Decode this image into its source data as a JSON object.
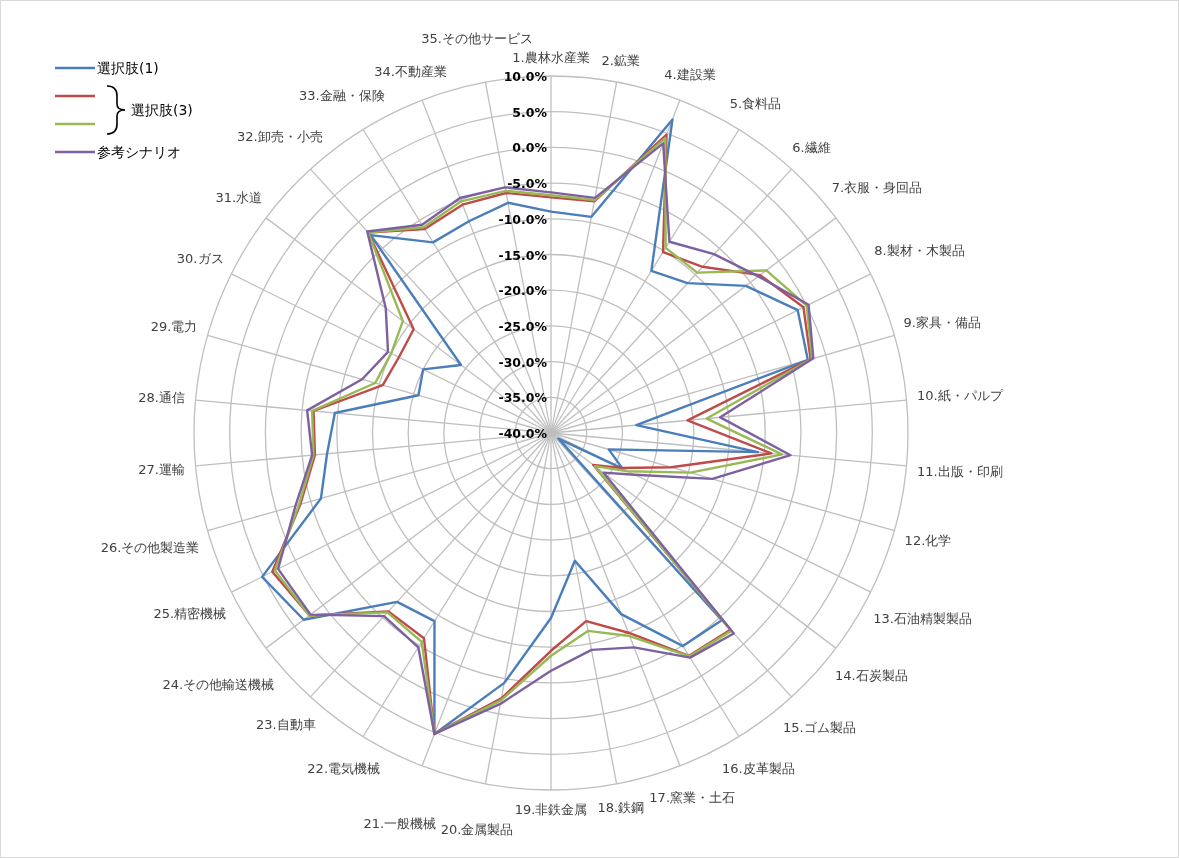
{
  "chart_data": {
    "type": "radar",
    "categories": [
      "1.農林水産業",
      "2.鉱業",
      "4.建設業",
      "5.食料品",
      "6.繊維",
      "7.衣服・身回品",
      "8.製材・木製品",
      "9.家具・備品",
      "10.紙・パルプ",
      "11.出版・印刷",
      "12.化学",
      "13.石油精製製品",
      "14.石炭製品",
      "15.ゴム製品",
      "16.皮革製品",
      "17.窯業・土石",
      "18.鉄鋼",
      "19.非鉄金属",
      "20.金属製品",
      "21.一般機械",
      "22.電気機械",
      "23.自動車",
      "24.その他輸送機械",
      "25.精密機械",
      "26.その他製造業",
      "27.運輸",
      "28.通信",
      "29.電力",
      "30.ガス",
      "31.水道",
      "32.卸売・小売",
      "33.金融・保険",
      "34.不動産業",
      "35.その他サービス"
    ],
    "series": [
      {
        "name": "選択肢(1)",
        "color": "#4a7ebb",
        "values": [
          -9.0,
          -9.2,
          7.1,
          -13.3,
          -11.6,
          -5.8,
          -1.4,
          -2.6,
          -28.0,
          -10.9,
          -31.6,
          -28.8,
          -38.7,
          -4.5,
          -4.9,
          -12.8,
          -21.8,
          -14.1,
          -4.4,
          5.2,
          -9.0,
          -8.0,
          3.4,
          5.2,
          -6.5,
          -8.5,
          -9.6,
          -20.7,
          -20.0,
          -24.2,
          -2.5,
          -8.6,
          -8.2,
          -7.2
        ]
      },
      {
        "color": "#be4b48",
        "values": [
          -7.0,
          -7.0,
          4.8,
          -10.2,
          -8.5,
          -3.3,
          -0.5,
          -2.2,
          -20.8,
          -9.0,
          -22.5,
          -29.0,
          -32.6,
          -2.7,
          -3.3,
          -10.0,
          -13.2,
          -9.5,
          -2.2,
          5.2,
          -6.2,
          -6.2,
          2.4,
          3.6,
          -3.5,
          -6.8,
          -6.6,
          -15.5,
          -16.2,
          -15.9,
          -2.0,
          -6.4,
          -5.7,
          -5.8
        ]
      },
      {
        "color": "#98b954",
        "values": [
          -6.7,
          -6.8,
          4.3,
          -9.5,
          -9.6,
          -2.2,
          0.0,
          -2.0,
          -18.1,
          -7.5,
          -19.7,
          -28.0,
          -32.3,
          -2.5,
          -3.2,
          -9.5,
          -11.8,
          -8.8,
          -1.9,
          5.2,
          -5.6,
          -6.0,
          2.4,
          3.2,
          -3.3,
          -6.6,
          -6.4,
          -14.4,
          -15.0,
          -14.0,
          -2.0,
          -6.1,
          -5.2,
          -5.5
        ]
      },
      {
        "name": "参考シナリオ",
        "color": "#7d60a0",
        "values": [
          -6.3,
          -6.5,
          3.5,
          -8.5,
          -6.1,
          -3.6,
          0.3,
          -1.8,
          -16.2,
          -6.3,
          -16.5,
          -26.9,
          -30.8,
          -2.0,
          -3.0,
          -7.8,
          -9.1,
          -6.7,
          -1.4,
          5.2,
          -4.7,
          -5.3,
          2.2,
          2.7,
          -2.8,
          -6.4,
          -5.7,
          -12.5,
          -14.5,
          -11.0,
          -1.8,
          -5.7,
          -4.7,
          -5.0
        ]
      }
    ],
    "annotations": [
      "選択肢(3)"
    ],
    "ylim": [
      -40,
      10
    ],
    "yticks": [
      {
        "value": 10,
        "label": "10.0%"
      },
      {
        "value": 5,
        "label": "5.0%"
      },
      {
        "value": 0,
        "label": "0.0%"
      },
      {
        "value": -5,
        "label": "-5.0%"
      },
      {
        "value": -10,
        "label": "-10.0%"
      },
      {
        "value": -15,
        "label": "-15.0%"
      },
      {
        "value": -20,
        "label": "-20.0%"
      },
      {
        "value": -25,
        "label": "-25.0%"
      },
      {
        "value": -30,
        "label": "-30.0%"
      },
      {
        "value": -35,
        "label": "-35.0%"
      },
      {
        "value": -40,
        "label": "-40.0%"
      }
    ],
    "grid": true,
    "legend": "top left"
  }
}
